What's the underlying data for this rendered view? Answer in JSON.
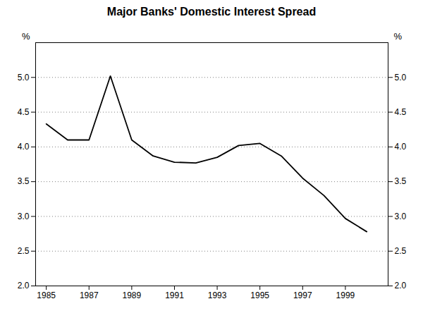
{
  "chart_data": {
    "type": "line",
    "title": "Major Banks' Domestic Interest Spread",
    "y_label": "%",
    "y2_label": "%",
    "x": [
      1985,
      1986,
      1987,
      1988,
      1989,
      1990,
      1991,
      1992,
      1993,
      1994,
      1995,
      1996,
      1997,
      1998,
      1999,
      2000
    ],
    "values": [
      4.33,
      4.1,
      4.1,
      5.02,
      4.1,
      3.87,
      3.78,
      3.77,
      3.85,
      4.02,
      4.05,
      3.87,
      3.55,
      3.3,
      2.97,
      2.78
    ],
    "color": "#000000",
    "xlim": [
      1984.5,
      2001.0
    ],
    "xticks": [
      1985,
      1987,
      1989,
      1991,
      1993,
      1995,
      1997,
      1999
    ],
    "ylim": [
      2.0,
      5.5
    ],
    "yticks": [
      {
        "value": 2.0,
        "label": "2.0"
      },
      {
        "value": 2.5,
        "label": "2.5"
      },
      {
        "value": 3.0,
        "label": "3.0"
      },
      {
        "value": 3.5,
        "label": "3.5"
      },
      {
        "value": 4.0,
        "label": "4.0"
      },
      {
        "value": 4.5,
        "label": "4.5"
      },
      {
        "value": 5.0,
        "label": "5.0"
      }
    ],
    "grid": true
  }
}
